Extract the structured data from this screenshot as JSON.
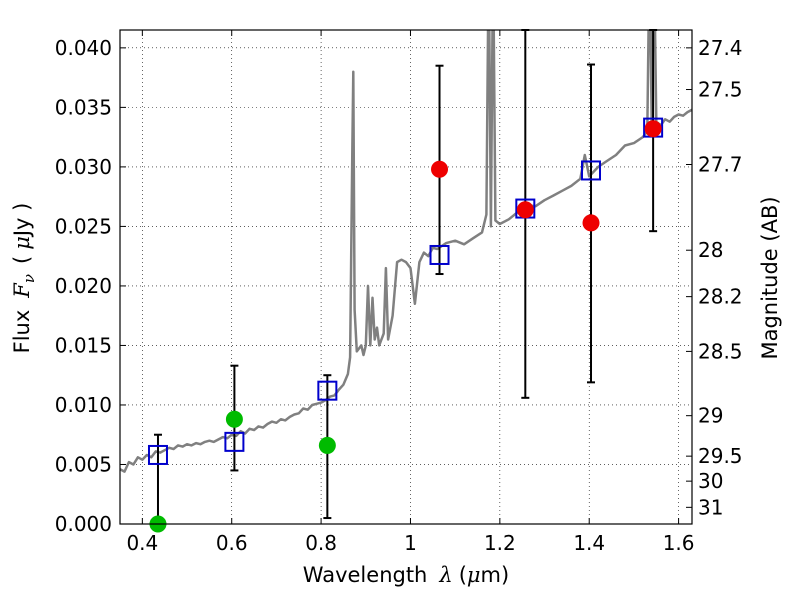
{
  "chart_data": {
    "type": "scatter",
    "xlabel_prefix": "Wavelength",
    "xlabel_symbol": "λ",
    "xlabel_unit_open": "(",
    "xlabel_unit_symbol": "μ",
    "xlabel_unit_rest": "m)",
    "ylabel_prefix": "Flux",
    "ylabel_symbol": "F",
    "ylabel_subscript": "ν",
    "ylabel_unit_open": "(",
    "ylabel_unit_symbol": "μ",
    "ylabel_unit_rest": "Jy )",
    "y2label": "Magnitude (AB)",
    "xlim": [
      0.35,
      1.63
    ],
    "ylim": [
      0.0,
      0.0415
    ],
    "grid": true,
    "x_ticks": [
      {
        "value": 0.4,
        "label": "0.4"
      },
      {
        "value": 0.6,
        "label": "0.6"
      },
      {
        "value": 0.8,
        "label": "0.8"
      },
      {
        "value": 1.0,
        "label": "1"
      },
      {
        "value": 1.2,
        "label": "1.2"
      },
      {
        "value": 1.4,
        "label": "1.4"
      },
      {
        "value": 1.6,
        "label": "1.6"
      }
    ],
    "y_ticks": [
      {
        "value": 0.0,
        "label": "0.000"
      },
      {
        "value": 0.005,
        "label": "0.005"
      },
      {
        "value": 0.01,
        "label": "0.010"
      },
      {
        "value": 0.015,
        "label": "0.015"
      },
      {
        "value": 0.02,
        "label": "0.020"
      },
      {
        "value": 0.025,
        "label": "0.025"
      },
      {
        "value": 0.03,
        "label": "0.030"
      },
      {
        "value": 0.035,
        "label": "0.035"
      },
      {
        "value": 0.04,
        "label": "0.040"
      }
    ],
    "y2_ticks": [
      {
        "flux": 0.04,
        "label": "27.4"
      },
      {
        "flux": 0.0365,
        "label": "27.5"
      },
      {
        "flux": 0.0302,
        "label": "27.7"
      },
      {
        "flux": 0.023,
        "label": "28"
      },
      {
        "flux": 0.0191,
        "label": "28.2"
      },
      {
        "flux": 0.0145,
        "label": "28.5"
      },
      {
        "flux": 0.0091,
        "label": "29"
      },
      {
        "flux": 0.0057,
        "label": "29.5"
      },
      {
        "flux": 0.0036,
        "label": "30"
      },
      {
        "flux": 0.0014,
        "label": "31"
      }
    ],
    "spectrum": {
      "color": "#808080",
      "points": [
        [
          0.35,
          0.0046
        ],
        [
          0.36,
          0.0044
        ],
        [
          0.37,
          0.0052
        ],
        [
          0.38,
          0.005
        ],
        [
          0.39,
          0.0056
        ],
        [
          0.4,
          0.0054
        ],
        [
          0.41,
          0.0058
        ],
        [
          0.42,
          0.0056
        ],
        [
          0.43,
          0.0061
        ],
        [
          0.44,
          0.006
        ],
        [
          0.45,
          0.0062
        ],
        [
          0.46,
          0.0064
        ],
        [
          0.47,
          0.0063
        ],
        [
          0.48,
          0.0066
        ],
        [
          0.49,
          0.0065
        ],
        [
          0.5,
          0.0067
        ],
        [
          0.51,
          0.0066
        ],
        [
          0.52,
          0.0068
        ],
        [
          0.53,
          0.0067
        ],
        [
          0.54,
          0.0069
        ],
        [
          0.55,
          0.007
        ],
        [
          0.56,
          0.0069
        ],
        [
          0.57,
          0.0071
        ],
        [
          0.58,
          0.0073
        ],
        [
          0.59,
          0.0072
        ],
        [
          0.6,
          0.0075
        ],
        [
          0.61,
          0.0074
        ],
        [
          0.62,
          0.0078
        ],
        [
          0.63,
          0.0076
        ],
        [
          0.64,
          0.008
        ],
        [
          0.65,
          0.0079
        ],
        [
          0.66,
          0.0082
        ],
        [
          0.67,
          0.0081
        ],
        [
          0.68,
          0.0084
        ],
        [
          0.69,
          0.0086
        ],
        [
          0.7,
          0.0085
        ],
        [
          0.71,
          0.0088
        ],
        [
          0.72,
          0.0087
        ],
        [
          0.73,
          0.009
        ],
        [
          0.74,
          0.0092
        ],
        [
          0.75,
          0.0093
        ],
        [
          0.76,
          0.0097
        ],
        [
          0.77,
          0.0096
        ],
        [
          0.78,
          0.01
        ],
        [
          0.79,
          0.0101
        ],
        [
          0.8,
          0.0102
        ],
        [
          0.81,
          0.0104
        ],
        [
          0.82,
          0.0107
        ],
        [
          0.83,
          0.0108
        ],
        [
          0.84,
          0.0113
        ],
        [
          0.85,
          0.0117
        ],
        [
          0.86,
          0.0126
        ],
        [
          0.865,
          0.014
        ],
        [
          0.87,
          0.032
        ],
        [
          0.872,
          0.038
        ],
        [
          0.875,
          0.018
        ],
        [
          0.88,
          0.0145
        ],
        [
          0.89,
          0.015
        ],
        [
          0.895,
          0.0142
        ],
        [
          0.9,
          0.015
        ],
        [
          0.905,
          0.02
        ],
        [
          0.91,
          0.015
        ],
        [
          0.915,
          0.019
        ],
        [
          0.92,
          0.0155
        ],
        [
          0.925,
          0.0165
        ],
        [
          0.93,
          0.015
        ],
        [
          0.94,
          0.016
        ],
        [
          0.945,
          0.0215
        ],
        [
          0.95,
          0.0155
        ],
        [
          0.96,
          0.0175
        ],
        [
          0.97,
          0.022
        ],
        [
          0.98,
          0.0222
        ],
        [
          0.99,
          0.022
        ],
        [
          1.0,
          0.0215
        ],
        [
          1.01,
          0.0185
        ],
        [
          1.02,
          0.022
        ],
        [
          1.03,
          0.0228
        ],
        [
          1.04,
          0.0225
        ],
        [
          1.05,
          0.0232
        ],
        [
          1.06,
          0.0231
        ],
        [
          1.08,
          0.0236
        ],
        [
          1.1,
          0.0238
        ],
        [
          1.12,
          0.0235
        ],
        [
          1.14,
          0.024
        ],
        [
          1.16,
          0.0245
        ],
        [
          1.17,
          0.026
        ],
        [
          1.175,
          0.048
        ],
        [
          1.18,
          0.025
        ],
        [
          1.185,
          0.048
        ],
        [
          1.19,
          0.0255
        ],
        [
          1.2,
          0.0252
        ],
        [
          1.22,
          0.0256
        ],
        [
          1.24,
          0.0262
        ],
        [
          1.26,
          0.0268
        ],
        [
          1.28,
          0.0267
        ],
        [
          1.3,
          0.0272
        ],
        [
          1.32,
          0.0276
        ],
        [
          1.34,
          0.028
        ],
        [
          1.36,
          0.0284
        ],
        [
          1.38,
          0.029
        ],
        [
          1.39,
          0.031
        ],
        [
          1.4,
          0.0292
        ],
        [
          1.42,
          0.03
        ],
        [
          1.44,
          0.0305
        ],
        [
          1.46,
          0.031
        ],
        [
          1.48,
          0.0318
        ],
        [
          1.5,
          0.032
        ],
        [
          1.52,
          0.0325
        ],
        [
          1.53,
          0.033
        ],
        [
          1.535,
          0.048
        ],
        [
          1.54,
          0.033
        ],
        [
          1.545,
          0.048
        ],
        [
          1.55,
          0.0338
        ],
        [
          1.56,
          0.0335
        ],
        [
          1.57,
          0.034
        ],
        [
          1.58,
          0.0338
        ],
        [
          1.59,
          0.0342
        ],
        [
          1.6,
          0.0344
        ],
        [
          1.61,
          0.0343
        ],
        [
          1.62,
          0.0346
        ],
        [
          1.63,
          0.0348
        ]
      ]
    },
    "series": [
      {
        "marker": "square",
        "color": "#0000cc",
        "points": [
          [
            0.435,
            0.0058
          ],
          [
            0.606,
            0.0069
          ],
          [
            0.814,
            0.0112
          ],
          [
            1.065,
            0.0226
          ],
          [
            1.257,
            0.0265
          ],
          [
            1.404,
            0.0297
          ],
          [
            1.543,
            0.0333
          ]
        ]
      },
      {
        "marker": "circle",
        "color": "#00bb00",
        "points": [
          [
            0.435,
            0.0
          ],
          [
            0.606,
            0.0088
          ],
          [
            0.814,
            0.0066
          ]
        ],
        "errorbars": [
          [
            0.435,
            0.0,
            0.0075
          ],
          [
            0.606,
            0.0045,
            0.0133
          ],
          [
            0.814,
            0.0005,
            0.0125
          ]
        ]
      },
      {
        "marker": "circle",
        "color": "#ee0000",
        "points": [
          [
            1.065,
            0.0298
          ],
          [
            1.257,
            0.0264
          ],
          [
            1.404,
            0.0253
          ],
          [
            1.543,
            0.0332
          ]
        ],
        "errorbars": [
          [
            1.065,
            0.021,
            0.0385
          ],
          [
            1.257,
            0.0106,
            0.042
          ],
          [
            1.404,
            0.0119,
            0.0386
          ],
          [
            1.543,
            0.0246,
            0.042
          ]
        ]
      }
    ]
  }
}
